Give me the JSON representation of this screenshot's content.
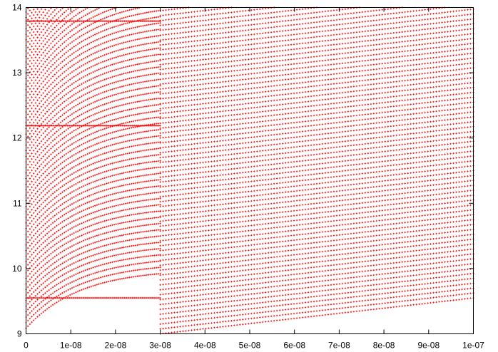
{
  "chart_data": {
    "type": "scatter",
    "title": "",
    "xlabel": "",
    "ylabel": "",
    "xlim": [
      0,
      1e-07
    ],
    "ylim": [
      9,
      14
    ],
    "x_ticks": [
      {
        "value": 0,
        "label": "0"
      },
      {
        "value": 1e-08,
        "label": "1e-08"
      },
      {
        "value": 2e-08,
        "label": "2e-08"
      },
      {
        "value": 3e-08,
        "label": "3e-08"
      },
      {
        "value": 4e-08,
        "label": "4e-08"
      },
      {
        "value": 5e-08,
        "label": "5e-08"
      },
      {
        "value": 6e-08,
        "label": "6e-08"
      },
      {
        "value": 7e-08,
        "label": "7e-08"
      },
      {
        "value": 8e-08,
        "label": "8e-08"
      },
      {
        "value": 9e-08,
        "label": "9e-08"
      },
      {
        "value": 1e-07,
        "label": "1e-07"
      }
    ],
    "y_ticks": [
      {
        "value": 9,
        "label": "9"
      },
      {
        "value": 10,
        "label": "10"
      },
      {
        "value": 11,
        "label": "11"
      },
      {
        "value": 12,
        "label": "12"
      },
      {
        "value": 13,
        "label": "13"
      },
      {
        "value": 14,
        "label": "14"
      }
    ],
    "grid": false,
    "legend": "none",
    "marker_color": "#ff0000",
    "flat_levels": [
      9.55,
      12.19,
      13.79
    ],
    "dense_region_x_end": 3e-08
  }
}
